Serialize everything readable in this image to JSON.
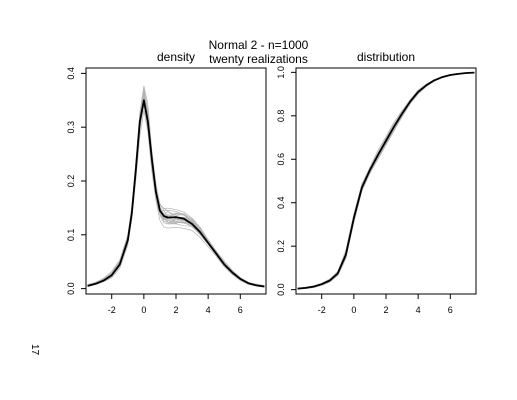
{
  "figure": {
    "title_line1": "Normal 2 - n=1000",
    "title_line2": "twenty realizations",
    "page_number": "17"
  },
  "chart_data": [
    {
      "type": "line",
      "title": "density",
      "xlabel": "",
      "ylabel": "",
      "xlim": [
        -3.6,
        7.6
      ],
      "ylim": [
        -0.01,
        0.41
      ],
      "x_ticks": [
        -2,
        0,
        2,
        4,
        6
      ],
      "x_tick_labels": [
        "-2",
        "0",
        "2",
        "4",
        "6"
      ],
      "y_ticks": [
        0.0,
        0.1,
        0.2,
        0.3,
        0.4
      ],
      "y_tick_labels": [
        "0.0",
        "0.1",
        "0.2",
        "0.3",
        "0.4"
      ],
      "grid": false,
      "series": [
        {
          "role": "true",
          "color": "#000000",
          "x": [
            -3.5,
            -3.0,
            -2.5,
            -2.0,
            -1.5,
            -1.0,
            -0.75,
            -0.5,
            -0.25,
            0.0,
            0.25,
            0.5,
            0.75,
            1.0,
            1.25,
            1.5,
            2.0,
            2.5,
            3.0,
            3.5,
            4.0,
            4.5,
            5.0,
            5.5,
            6.0,
            6.5,
            7.0,
            7.5
          ],
          "y": [
            0.005,
            0.009,
            0.015,
            0.025,
            0.045,
            0.09,
            0.14,
            0.22,
            0.31,
            0.35,
            0.31,
            0.24,
            0.18,
            0.145,
            0.135,
            0.132,
            0.133,
            0.13,
            0.12,
            0.105,
            0.085,
            0.065,
            0.045,
            0.03,
            0.018,
            0.01,
            0.006,
            0.004
          ]
        }
      ],
      "realizations": {
        "count": 20,
        "color": "#b5b5b5",
        "x": [
          -3.5,
          -3.0,
          -2.5,
          -2.0,
          -1.5,
          -1.0,
          -0.75,
          -0.5,
          -0.25,
          0.0,
          0.25,
          0.5,
          0.75,
          1.0,
          1.25,
          1.5,
          2.0,
          2.5,
          3.0,
          3.5,
          4.0,
          4.5,
          5.0,
          5.5,
          6.0,
          6.5,
          7.0,
          7.5
        ],
        "y_range_low": [
          0.003,
          0.007,
          0.012,
          0.02,
          0.038,
          0.078,
          0.125,
          0.2,
          0.28,
          0.32,
          0.285,
          0.215,
          0.16,
          0.125,
          0.112,
          0.108,
          0.11,
          0.112,
          0.108,
          0.095,
          0.078,
          0.058,
          0.04,
          0.026,
          0.015,
          0.008,
          0.004,
          0.002
        ],
        "y_range_high": [
          0.008,
          0.013,
          0.02,
          0.032,
          0.055,
          0.105,
          0.16,
          0.245,
          0.34,
          0.39,
          0.345,
          0.265,
          0.2,
          0.165,
          0.158,
          0.155,
          0.152,
          0.148,
          0.135,
          0.118,
          0.095,
          0.073,
          0.052,
          0.035,
          0.022,
          0.013,
          0.009,
          0.006
        ]
      }
    },
    {
      "type": "line",
      "title": "distribution",
      "xlabel": "",
      "ylabel": "",
      "xlim": [
        -3.6,
        7.6
      ],
      "ylim": [
        -0.02,
        1.02
      ],
      "x_ticks": [
        -2,
        0,
        2,
        4,
        6
      ],
      "x_tick_labels": [
        "-2",
        "0",
        "2",
        "4",
        "6"
      ],
      "y_ticks": [
        0.0,
        0.2,
        0.4,
        0.6,
        0.8,
        1.0
      ],
      "y_tick_labels": [
        "0.0",
        "0.2",
        "0.4",
        "0.6",
        "0.8",
        "1.0"
      ],
      "grid": false,
      "series": [
        {
          "role": "true",
          "color": "#000000",
          "x": [
            -3.5,
            -3.0,
            -2.5,
            -2.0,
            -1.5,
            -1.0,
            -0.5,
            0.0,
            0.5,
            1.0,
            1.5,
            2.0,
            2.5,
            3.0,
            3.5,
            4.0,
            4.5,
            5.0,
            5.5,
            6.0,
            6.5,
            7.0,
            7.5
          ],
          "y": [
            0.005,
            0.008,
            0.014,
            0.025,
            0.042,
            0.075,
            0.16,
            0.33,
            0.47,
            0.55,
            0.62,
            0.685,
            0.75,
            0.81,
            0.865,
            0.91,
            0.94,
            0.963,
            0.978,
            0.988,
            0.993,
            0.997,
            0.999
          ]
        }
      ],
      "realizations": {
        "count": 20,
        "color": "#b5b5b5",
        "x": [
          -3.5,
          -3.0,
          -2.5,
          -2.0,
          -1.5,
          -1.0,
          -0.5,
          0.0,
          0.5,
          1.0,
          1.5,
          2.0,
          2.5,
          3.0,
          3.5,
          4.0,
          4.5,
          5.0,
          5.5,
          6.0,
          6.5,
          7.0,
          7.5
        ],
        "y_range_low": [
          0.003,
          0.005,
          0.01,
          0.02,
          0.035,
          0.065,
          0.14,
          0.31,
          0.45,
          0.535,
          0.6,
          0.665,
          0.73,
          0.795,
          0.855,
          0.9,
          0.935,
          0.96,
          0.976,
          0.987,
          0.993,
          0.997,
          0.999
        ],
        "y_range_high": [
          0.007,
          0.011,
          0.018,
          0.03,
          0.05,
          0.085,
          0.18,
          0.35,
          0.49,
          0.565,
          0.64,
          0.705,
          0.77,
          0.825,
          0.875,
          0.918,
          0.946,
          0.966,
          0.98,
          0.989,
          0.994,
          0.997,
          0.999
        ]
      }
    }
  ]
}
